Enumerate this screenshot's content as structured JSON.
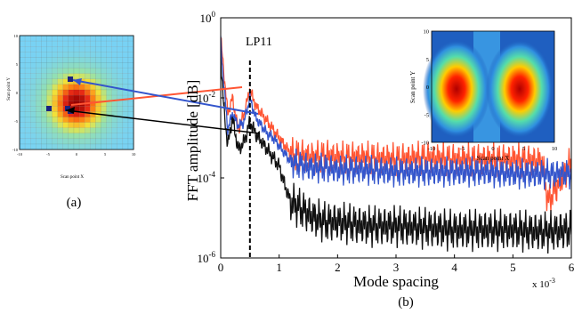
{
  "panel_a": {
    "ylabel": "Scan point Y",
    "xlabel": "Scan point X",
    "caption": "(a)",
    "xticks": [
      "-10",
      "-5",
      "0",
      "5",
      "10"
    ],
    "yticks": [
      "10",
      "5",
      "0",
      "-5",
      "-10"
    ]
  },
  "panel_b": {
    "caption": "(b)",
    "annotation": "LP11",
    "x_multiplier": "x 10",
    "x_multiplier_exp": "-3"
  },
  "inset": {
    "ylabel": "Scan point Y",
    "xlabel": "Scan point X",
    "xticks": [
      "-10",
      "-5",
      "0",
      "5",
      "10"
    ],
    "yticks": [
      "10",
      "5",
      "0",
      "-5",
      "-10"
    ]
  },
  "chart_data": {
    "type": "line",
    "title": "",
    "xlabel": "Mode spacing",
    "ylabel": "FFT amplitude [dB]",
    "xlim": [
      0,
      6
    ],
    "ylim_log10": [
      -6,
      0
    ],
    "yscale": "log",
    "grid": false,
    "xticks": [
      "0",
      "1",
      "2",
      "3",
      "4",
      "5",
      "6"
    ],
    "yticks": [
      {
        "base": "10",
        "exp": "0",
        "pow": 0
      },
      {
        "base": "10",
        "exp": "-2",
        "pow": -2
      },
      {
        "base": "10",
        "exp": "-4",
        "pow": -4
      },
      {
        "base": "10",
        "exp": "-6",
        "pow": -6
      }
    ],
    "lp11_marker_x": 0.5,
    "series": [
      {
        "color": "#ff5533",
        "x": [
          0,
          0.05,
          0.12,
          0.2,
          0.3,
          0.4,
          0.5,
          0.6,
          0.7,
          0.8,
          0.9,
          1.0,
          1.1,
          1.2,
          1.4,
          1.6,
          1.8,
          2.0,
          2.5,
          3.0,
          3.5,
          4.0,
          4.5,
          5.0,
          5.5,
          5.6,
          6.0
        ],
        "y": [
          -0.5,
          -1.3,
          -2.4,
          -2.0,
          -2.8,
          -2.4,
          -1.8,
          -2.2,
          -2.4,
          -2.6,
          -2.8,
          -3.0,
          -3.2,
          -3.4,
          -3.45,
          -3.5,
          -3.45,
          -3.5,
          -3.5,
          -3.55,
          -3.5,
          -3.55,
          -3.55,
          -3.55,
          -3.6,
          -4.6,
          -3.6
        ]
      },
      {
        "color": "#3355cc",
        "x": [
          0,
          0.05,
          0.12,
          0.2,
          0.3,
          0.4,
          0.5,
          0.6,
          0.7,
          0.8,
          0.9,
          1.0,
          1.1,
          1.2,
          1.4,
          1.6,
          1.8,
          2.0,
          2.5,
          3.0,
          3.5,
          4.0,
          4.5,
          5.0,
          5.5,
          6.0
        ],
        "y": [
          -0.6,
          -1.6,
          -2.8,
          -2.4,
          -2.7,
          -2.6,
          -2.0,
          -2.5,
          -2.7,
          -2.9,
          -3.0,
          -3.2,
          -3.4,
          -3.6,
          -3.7,
          -3.75,
          -3.75,
          -3.8,
          -3.8,
          -3.85,
          -3.85,
          -3.85,
          -3.85,
          -3.9,
          -3.9,
          -3.9
        ]
      },
      {
        "color": "#111111",
        "x": [
          0,
          0.05,
          0.12,
          0.2,
          0.3,
          0.4,
          0.5,
          0.6,
          0.7,
          0.8,
          0.9,
          1.0,
          1.1,
          1.2,
          1.4,
          1.6,
          1.8,
          2.0,
          2.5,
          3.0,
          3.5,
          4.0,
          4.5,
          5.0,
          5.5,
          6.0
        ],
        "y": [
          -1.0,
          -2.2,
          -3.2,
          -2.5,
          -3.3,
          -3.1,
          -2.6,
          -2.9,
          -3.1,
          -3.3,
          -3.5,
          -3.7,
          -4.2,
          -4.6,
          -4.8,
          -5.0,
          -5.1,
          -5.1,
          -5.2,
          -5.2,
          -5.25,
          -5.3,
          -5.3,
          -5.3,
          -5.35,
          -5.3
        ]
      }
    ]
  }
}
